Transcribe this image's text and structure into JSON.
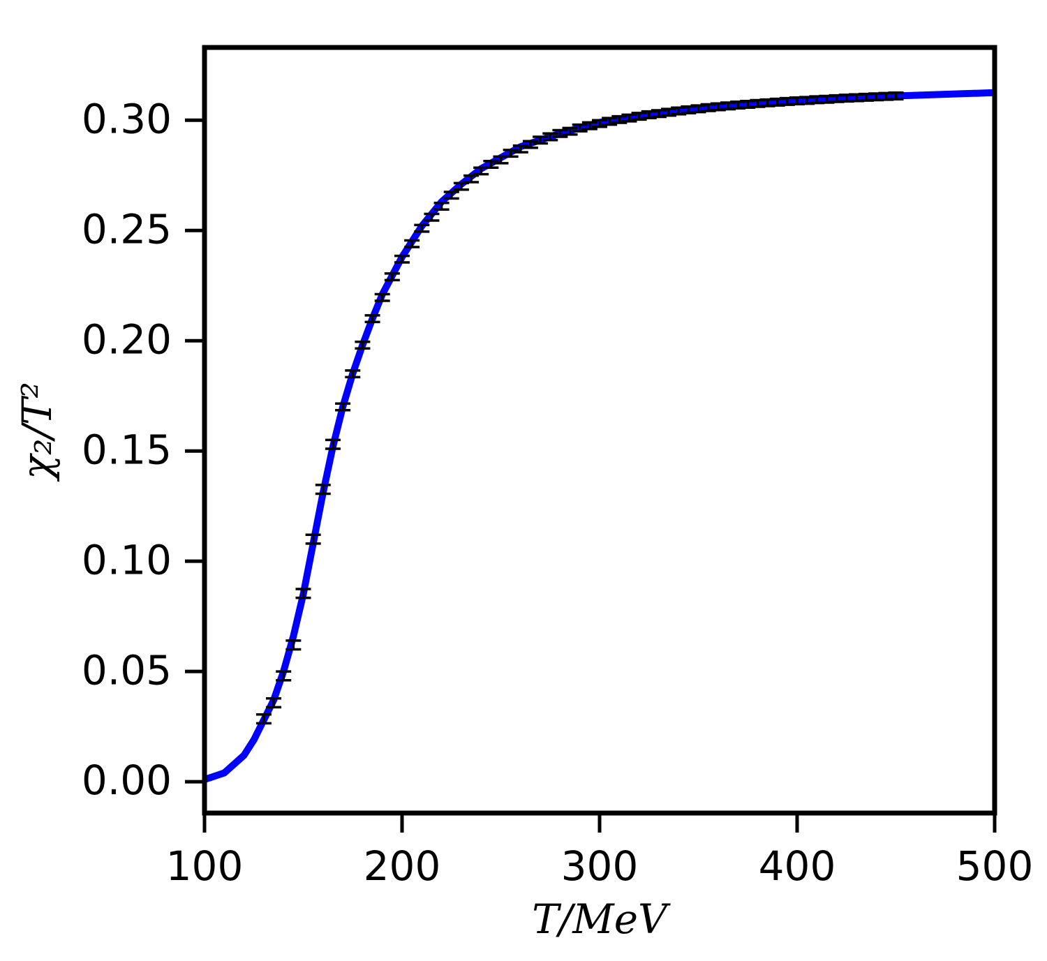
{
  "chart_data": {
    "type": "line",
    "xlabel": "T/MeV",
    "ylabel": "χ₂/T²",
    "xlim": [
      100,
      500
    ],
    "ylim": [
      -0.0142,
      0.333
    ],
    "xticks": [
      100,
      200,
      300,
      400,
      500
    ],
    "yticks": [
      {
        "value": 0,
        "label": "0.00"
      },
      {
        "value": 0.05,
        "label": "0.05"
      },
      {
        "value": 0.1,
        "label": "0.10"
      },
      {
        "value": 0.15,
        "label": "0.15"
      },
      {
        "value": 0.2,
        "label": "0.20"
      },
      {
        "value": 0.25,
        "label": "0.25"
      },
      {
        "value": 0.3,
        "label": "0.30"
      }
    ],
    "series": [
      {
        "color": "#0000ff",
        "x": [
          100,
          110,
          120,
          125,
          130,
          135,
          140,
          145,
          150,
          155,
          160,
          165,
          170,
          175,
          180,
          185,
          190,
          200,
          210,
          220,
          230,
          240,
          250,
          260,
          280,
          300,
          320,
          350,
          400,
          450,
          500
        ],
        "values": [
          0.001,
          0.004,
          0.012,
          0.019,
          0.028,
          0.037,
          0.05,
          0.066,
          0.085,
          0.108,
          0.131,
          0.152,
          0.17,
          0.185,
          0.198,
          0.21,
          0.221,
          0.238,
          0.252,
          0.263,
          0.271,
          0.278,
          0.283,
          0.288,
          0.294,
          0.299,
          0.302,
          0.3055,
          0.309,
          0.311,
          0.3125
        ]
      },
      {
        "color": "#000000",
        "errorbars": true,
        "x": [
          130,
          135,
          140,
          145,
          150,
          155,
          160,
          165,
          170,
          175,
          180,
          185,
          190,
          195,
          200,
          205,
          210,
          215,
          220,
          225,
          230,
          235,
          240,
          245,
          250,
          255,
          260,
          265,
          270,
          275,
          280,
          285,
          290,
          295,
          300,
          305,
          310,
          315,
          320,
          325,
          330,
          335,
          340,
          345,
          350,
          355,
          360,
          365,
          370,
          375,
          380,
          385,
          390,
          395,
          400,
          405,
          410,
          415,
          420,
          425,
          430,
          435,
          440,
          445,
          450
        ],
        "values": [
          0.0285,
          0.0358,
          0.048,
          0.062,
          0.0854,
          0.11,
          0.1326,
          0.153,
          0.17,
          0.185,
          0.198,
          0.21,
          0.2196,
          0.229,
          0.237,
          0.244,
          0.251,
          0.256,
          0.261,
          0.266,
          0.27,
          0.2734,
          0.277,
          0.28,
          0.282,
          0.285,
          0.287,
          0.289,
          0.291,
          0.2925,
          0.294,
          0.295,
          0.2965,
          0.2975,
          0.2985,
          0.2995,
          0.3003,
          0.301,
          0.3018,
          0.3025,
          0.303,
          0.3036,
          0.3042,
          0.3047,
          0.3052,
          0.3057,
          0.3061,
          0.3065,
          0.3069,
          0.3072,
          0.3076,
          0.3079,
          0.3082,
          0.3085,
          0.3088,
          0.309,
          0.3093,
          0.3095,
          0.3098,
          0.31,
          0.3102,
          0.3104,
          0.3106,
          0.3108,
          0.311
        ],
        "errors": [
          0.002,
          0.002,
          0.002,
          0.002,
          0.002,
          0.002,
          0.002,
          0.002,
          0.0015,
          0.0015,
          0.0015,
          0.0015,
          0.0015,
          0.0015,
          0.0015,
          0.0015,
          0.0015,
          0.0015,
          0.0015,
          0.0015,
          0.0015,
          0.0015,
          0.0015,
          0.0015,
          0.0015,
          0.0015,
          0.0015,
          0.0015,
          0.0015,
          0.0015,
          0.0015,
          0.0015,
          0.0015,
          0.0015,
          0.0015,
          0.0015,
          0.0015,
          0.0015,
          0.0015,
          0.0015,
          0.0015,
          0.0015,
          0.0015,
          0.0015,
          0.0015,
          0.0015,
          0.0015,
          0.0015,
          0.0015,
          0.0015,
          0.0015,
          0.0015,
          0.0015,
          0.0015,
          0.0015,
          0.0015,
          0.0015,
          0.0015,
          0.0015,
          0.0015,
          0.0015,
          0.0015,
          0.0015,
          0.0015,
          0.0015
        ]
      }
    ]
  }
}
